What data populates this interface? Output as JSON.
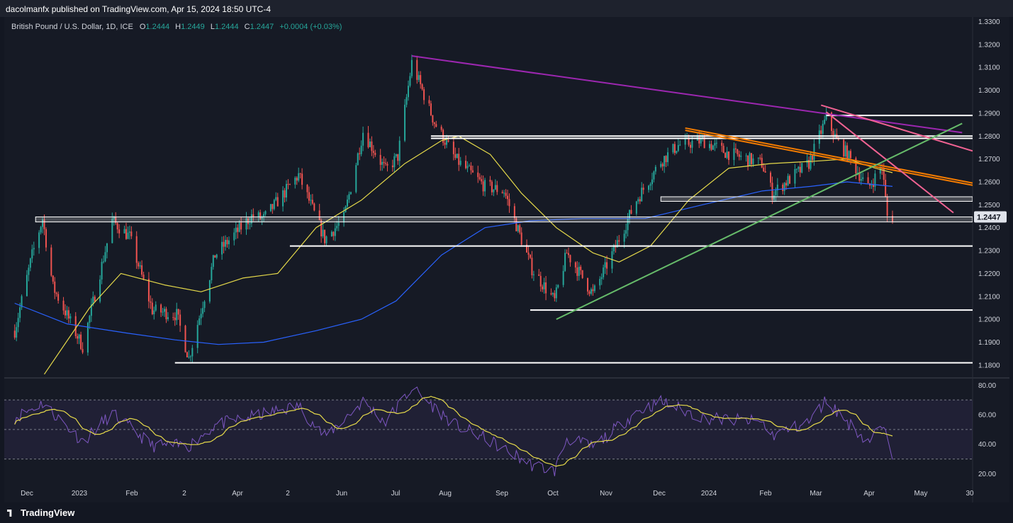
{
  "header": {
    "published": "dacolmanfx published on TradingView.com, Apr 15, 2024 18:50 UTC-4"
  },
  "legend": {
    "symbol": "British Pound / U.S. Dollar, 1D, ICE",
    "o_label": "O",
    "o_value": "1.2444",
    "h_label": "H",
    "h_value": "1.2449",
    "l_label": "L",
    "l_value": "1.2444",
    "c_label": "C",
    "c_value": "1.2447",
    "change": "+0.0004 (+0.03%)"
  },
  "footer": {
    "brand": "TradingView"
  },
  "colors": {
    "background": "#161a25",
    "up": "#26a69a",
    "down": "#ef5350",
    "ma_fast": "#e5d94a",
    "ma_slow": "#2962ff",
    "trend_purple": "#9c27b0",
    "trend_orange": "#f57c00",
    "trend_pink": "#f06292",
    "trend_green": "#66bb6a",
    "rsi": "#7e57c2",
    "rsi_ma": "#e5d94a",
    "support": "#ffffff"
  },
  "chart_data": {
    "type": "candlestick",
    "symbol": "GBP/USD",
    "timeframe": "1D",
    "y_ticks": [
      "1.3300",
      "1.3200",
      "1.3100",
      "1.3000",
      "1.2900",
      "1.2800",
      "1.2700",
      "1.2600",
      "1.2500",
      "1.2400",
      "1.2300",
      "1.2200",
      "1.2100",
      "1.2000",
      "1.1900",
      "1.1800"
    ],
    "ylim": [
      1.175,
      1.332
    ],
    "x_ticks": [
      "Dec",
      "2023",
      "Feb",
      "2",
      "Apr",
      "2",
      "Jun",
      "Jul",
      "Aug",
      "Sep",
      "Oct",
      "Nov",
      "Dec",
      "2024",
      "Feb",
      "Mar",
      "Apr",
      "May",
      "30"
    ],
    "last_price": "1.2447",
    "last_price_value": 1.2447,
    "price_path": [
      {
        "d": "2022-11-28",
        "v": 1.195
      },
      {
        "d": "2022-12-08",
        "v": 1.228
      },
      {
        "d": "2022-12-14",
        "v": 1.244
      },
      {
        "d": "2022-12-20",
        "v": 1.214
      },
      {
        "d": "2023-01-06",
        "v": 1.188
      },
      {
        "d": "2023-01-23",
        "v": 1.243
      },
      {
        "d": "2023-02-02",
        "v": 1.236
      },
      {
        "d": "2023-02-15",
        "v": 1.204
      },
      {
        "d": "2023-03-01",
        "v": 1.202
      },
      {
        "d": "2023-03-08",
        "v": 1.183
      },
      {
        "d": "2023-03-23",
        "v": 1.228
      },
      {
        "d": "2023-04-13",
        "v": 1.245
      },
      {
        "d": "2023-04-20",
        "v": 1.244
      },
      {
        "d": "2023-05-10",
        "v": 1.263
      },
      {
        "d": "2023-05-25",
        "v": 1.235
      },
      {
        "d": "2023-06-05",
        "v": 1.244
      },
      {
        "d": "2023-06-16",
        "v": 1.282
      },
      {
        "d": "2023-06-29",
        "v": 1.265
      },
      {
        "d": "2023-07-06",
        "v": 1.271
      },
      {
        "d": "2023-07-14",
        "v": 1.312
      },
      {
        "d": "2023-07-27",
        "v": 1.286
      },
      {
        "d": "2023-08-08",
        "v": 1.27
      },
      {
        "d": "2023-08-25",
        "v": 1.258
      },
      {
        "d": "2023-09-05",
        "v": 1.256
      },
      {
        "d": "2023-09-21",
        "v": 1.222
      },
      {
        "d": "2023-10-04",
        "v": 1.208
      },
      {
        "d": "2023-10-11",
        "v": 1.229
      },
      {
        "d": "2023-10-26",
        "v": 1.211
      },
      {
        "d": "2023-11-07",
        "v": 1.23
      },
      {
        "d": "2023-11-20",
        "v": 1.252
      },
      {
        "d": "2023-12-04",
        "v": 1.269
      },
      {
        "d": "2023-12-14",
        "v": 1.276
      },
      {
        "d": "2023-12-28",
        "v": 1.278
      },
      {
        "d": "2024-01-10",
        "v": 1.273
      },
      {
        "d": "2024-01-31",
        "v": 1.268
      },
      {
        "d": "2024-02-06",
        "v": 1.255
      },
      {
        "d": "2024-02-27",
        "v": 1.268
      },
      {
        "d": "2024-03-08",
        "v": 1.288
      },
      {
        "d": "2024-03-14",
        "v": 1.278
      },
      {
        "d": "2024-03-20",
        "v": 1.272
      },
      {
        "d": "2024-04-01",
        "v": 1.257
      },
      {
        "d": "2024-04-09",
        "v": 1.267
      },
      {
        "d": "2024-04-12",
        "v": 1.245
      },
      {
        "d": "2024-04-15",
        "v": 1.2447
      }
    ],
    "rsi": {
      "y_ticks": [
        "80.00",
        "60.00",
        "40.00",
        "20.00"
      ],
      "ylim": [
        13,
        84
      ],
      "upper_band": 70,
      "lower_band": 30,
      "mid_band": 50,
      "rsi_path": [
        {
          "d": "2022-11-28",
          "v": 58
        },
        {
          "d": "2022-12-14",
          "v": 68
        },
        {
          "d": "2023-01-06",
          "v": 42
        },
        {
          "d": "2023-01-23",
          "v": 61
        },
        {
          "d": "2023-02-15",
          "v": 39
        },
        {
          "d": "2023-03-08",
          "v": 39
        },
        {
          "d": "2023-03-23",
          "v": 53
        },
        {
          "d": "2023-05-10",
          "v": 66
        },
        {
          "d": "2023-05-25",
          "v": 45
        },
        {
          "d": "2023-06-16",
          "v": 69
        },
        {
          "d": "2023-06-29",
          "v": 55
        },
        {
          "d": "2023-07-14",
          "v": 78
        },
        {
          "d": "2023-08-08",
          "v": 53
        },
        {
          "d": "2023-08-25",
          "v": 44
        },
        {
          "d": "2023-09-21",
          "v": 26
        },
        {
          "d": "2023-10-04",
          "v": 22
        },
        {
          "d": "2023-10-11",
          "v": 44
        },
        {
          "d": "2023-10-26",
          "v": 38
        },
        {
          "d": "2023-11-20",
          "v": 62
        },
        {
          "d": "2023-12-04",
          "v": 69
        },
        {
          "d": "2023-12-28",
          "v": 58
        },
        {
          "d": "2024-01-31",
          "v": 55
        },
        {
          "d": "2024-02-06",
          "v": 46
        },
        {
          "d": "2024-02-27",
          "v": 55
        },
        {
          "d": "2024-03-08",
          "v": 70
        },
        {
          "d": "2024-03-20",
          "v": 55
        },
        {
          "d": "2024-04-01",
          "v": 42
        },
        {
          "d": "2024-04-09",
          "v": 52
        },
        {
          "d": "2024-04-15",
          "v": 33
        }
      ]
    },
    "moving_averages": {
      "fast_path": [
        {
          "d": "2022-12-15",
          "v": 1.176
        },
        {
          "d": "2023-01-10",
          "v": 1.205
        },
        {
          "d": "2023-01-28",
          "v": 1.22
        },
        {
          "d": "2023-02-22",
          "v": 1.215
        },
        {
          "d": "2023-03-15",
          "v": 1.212
        },
        {
          "d": "2023-04-08",
          "v": 1.218
        },
        {
          "d": "2023-04-28",
          "v": 1.22
        },
        {
          "d": "2023-05-20",
          "v": 1.24
        },
        {
          "d": "2023-06-15",
          "v": 1.252
        },
        {
          "d": "2023-07-10",
          "v": 1.268
        },
        {
          "d": "2023-07-31",
          "v": 1.278
        },
        {
          "d": "2023-08-10",
          "v": 1.28
        },
        {
          "d": "2023-08-28",
          "v": 1.272
        },
        {
          "d": "2023-09-15",
          "v": 1.255
        },
        {
          "d": "2023-10-05",
          "v": 1.24
        },
        {
          "d": "2023-10-26",
          "v": 1.229
        },
        {
          "d": "2023-11-10",
          "v": 1.225
        },
        {
          "d": "2023-11-28",
          "v": 1.232
        },
        {
          "d": "2023-12-20",
          "v": 1.252
        },
        {
          "d": "2024-01-12",
          "v": 1.266
        },
        {
          "d": "2024-02-05",
          "v": 1.268
        },
        {
          "d": "2024-03-01",
          "v": 1.269
        },
        {
          "d": "2024-03-20",
          "v": 1.27
        },
        {
          "d": "2024-04-05",
          "v": 1.266
        },
        {
          "d": "2024-04-15",
          "v": 1.264
        }
      ],
      "slow_path": [
        {
          "d": "2022-11-28",
          "v": 1.207
        },
        {
          "d": "2022-12-28",
          "v": 1.198
        },
        {
          "d": "2023-01-31",
          "v": 1.194
        },
        {
          "d": "2023-02-28",
          "v": 1.191
        },
        {
          "d": "2023-03-25",
          "v": 1.189
        },
        {
          "d": "2023-04-20",
          "v": 1.19
        },
        {
          "d": "2023-05-20",
          "v": 1.195
        },
        {
          "d": "2023-06-15",
          "v": 1.2
        },
        {
          "d": "2023-07-05",
          "v": 1.208
        },
        {
          "d": "2023-07-31",
          "v": 1.228
        },
        {
          "d": "2023-08-25",
          "v": 1.24
        },
        {
          "d": "2023-09-20",
          "v": 1.243
        },
        {
          "d": "2023-10-20",
          "v": 1.244
        },
        {
          "d": "2023-11-25",
          "v": 1.244
        },
        {
          "d": "2023-12-28",
          "v": 1.25
        },
        {
          "d": "2024-01-31",
          "v": 1.256
        },
        {
          "d": "2024-02-28",
          "v": 1.258
        },
        {
          "d": "2024-03-20",
          "v": 1.26
        },
        {
          "d": "2024-04-15",
          "v": 1.258
        }
      ]
    },
    "horizontal_levels": [
      {
        "v": 1.289,
        "from": "2024-03-08",
        "to": "2024-05-31"
      },
      {
        "v": 1.28,
        "from": "2023-07-25",
        "to": "2024-05-31"
      },
      {
        "v": 1.279,
        "from": "2023-07-25",
        "to": "2024-05-31"
      },
      {
        "v": 1.2535,
        "from": "2023-12-04",
        "to": "2024-05-31",
        "zone_bottom": 1.2515
      },
      {
        "v": 1.2447,
        "from": "2022-12-10",
        "to": "2024-05-31",
        "zone_bottom": 1.2425
      },
      {
        "v": 1.232,
        "from": "2023-05-05",
        "to": "2024-05-31"
      },
      {
        "v": 1.204,
        "from": "2023-09-20",
        "to": "2024-05-31"
      },
      {
        "v": 1.181,
        "from": "2023-02-28",
        "to": "2024-05-31"
      }
    ],
    "trendlines": [
      {
        "name": "purple",
        "from": {
          "d": "2023-07-14",
          "v": 1.315
        },
        "to": {
          "d": "2024-05-25",
          "v": 1.2815
        }
      },
      {
        "name": "orange-1",
        "from": {
          "d": "2023-12-18",
          "v": 1.2835
        },
        "to": {
          "d": "2024-05-31",
          "v": 1.2595
        }
      },
      {
        "name": "orange-2",
        "from": {
          "d": "2023-12-18",
          "v": 1.2825
        },
        "to": {
          "d": "2024-05-31",
          "v": 1.2585
        }
      },
      {
        "name": "pink-1",
        "from": {
          "d": "2024-03-08",
          "v": 1.2905
        },
        "to": {
          "d": "2024-05-20",
          "v": 1.2465
        }
      },
      {
        "name": "pink-2",
        "from": {
          "d": "2024-03-05",
          "v": 1.2935
        },
        "to": {
          "d": "2024-05-31",
          "v": 1.2735
        }
      },
      {
        "name": "green",
        "from": {
          "d": "2023-10-05",
          "v": 1.2
        },
        "to": {
          "d": "2024-05-25",
          "v": 1.2855
        }
      }
    ]
  }
}
